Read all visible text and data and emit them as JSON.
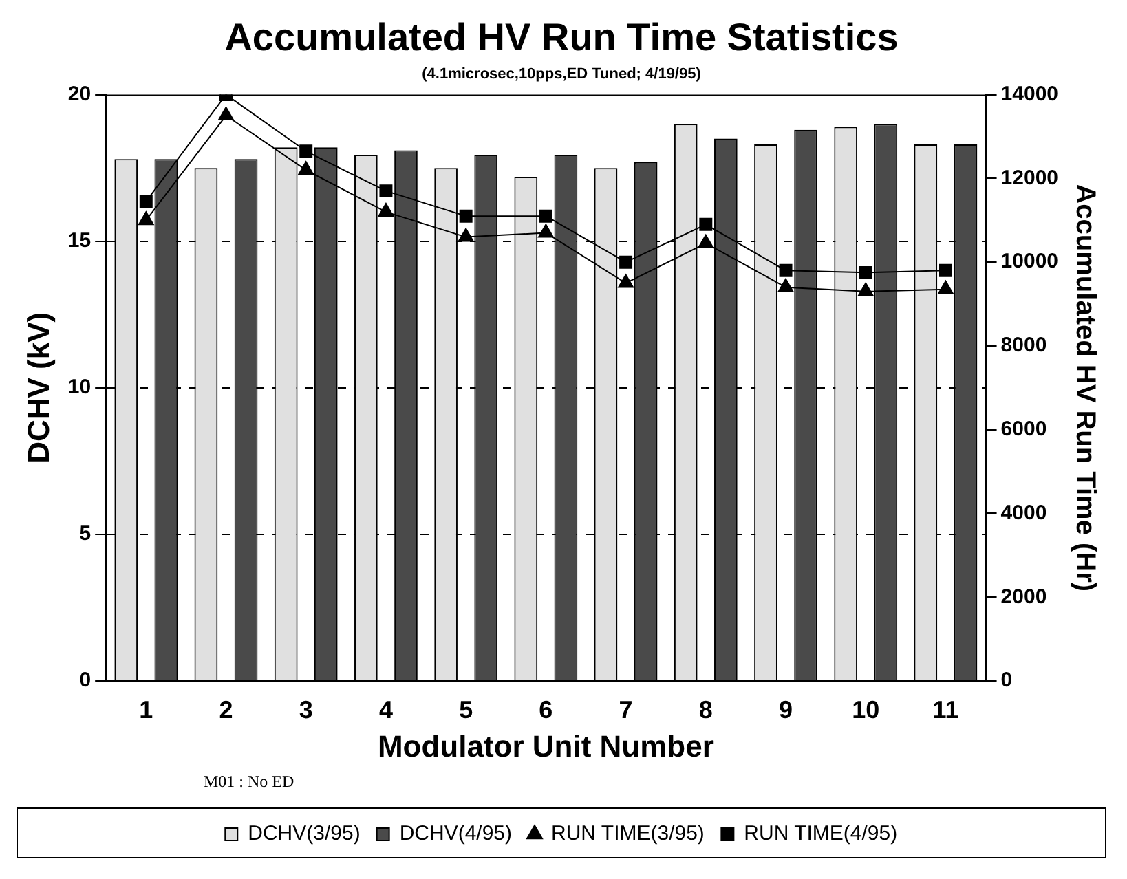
{
  "chart_data": {
    "type": "bar",
    "title": "Accumulated HV Run Time Statistics",
    "subtitle": "(4.1microsec,10pps,ED Tuned; 4/19/95)",
    "xlabel": "Modulator Unit Number",
    "ylabel": "DCHV (kV)",
    "y2label": "Accumulated HV Run Time (Hr)",
    "categories": [
      "1",
      "2",
      "3",
      "4",
      "5",
      "6",
      "7",
      "8",
      "9",
      "10",
      "11"
    ],
    "series": [
      {
        "name": "DCHV(3/95)",
        "color": "#e0e0e0",
        "values": [
          17.8,
          17.5,
          18.2,
          17.95,
          17.5,
          17.2,
          17.5,
          19.0,
          18.3,
          18.9,
          18.3
        ]
      },
      {
        "name": "DCHV(4/95)",
        "color": "#4a4a4a",
        "values": [
          17.8,
          17.8,
          18.2,
          18.1,
          17.95,
          17.95,
          17.7,
          18.5,
          18.8,
          19.0,
          18.3
        ]
      },
      {
        "name": "RUN TIME(3/95)",
        "type": "line",
        "axis": "y2",
        "color": "#000000",
        "marker": "triangle",
        "values": [
          11000,
          13500,
          12200,
          11200,
          10600,
          10700,
          9500,
          10450,
          9400,
          9300,
          9350
        ]
      },
      {
        "name": "RUN TIME(4/95)",
        "type": "line",
        "axis": "y2",
        "color": "#000000",
        "marker": "square",
        "values": [
          11450,
          14000,
          12650,
          11700,
          11100,
          11100,
          10000,
          10900,
          9800,
          9750,
          9800
        ]
      }
    ],
    "ylim": [
      0,
      20
    ],
    "yticks": [
      0,
      5,
      10,
      15,
      20
    ],
    "y2lim": [
      0,
      14000
    ],
    "y2ticks": [
      0,
      2000,
      4000,
      6000,
      8000,
      10000,
      12000,
      14000
    ],
    "grid": "y",
    "legend": "bottom",
    "annotations": [
      "M01 : No ED"
    ]
  }
}
